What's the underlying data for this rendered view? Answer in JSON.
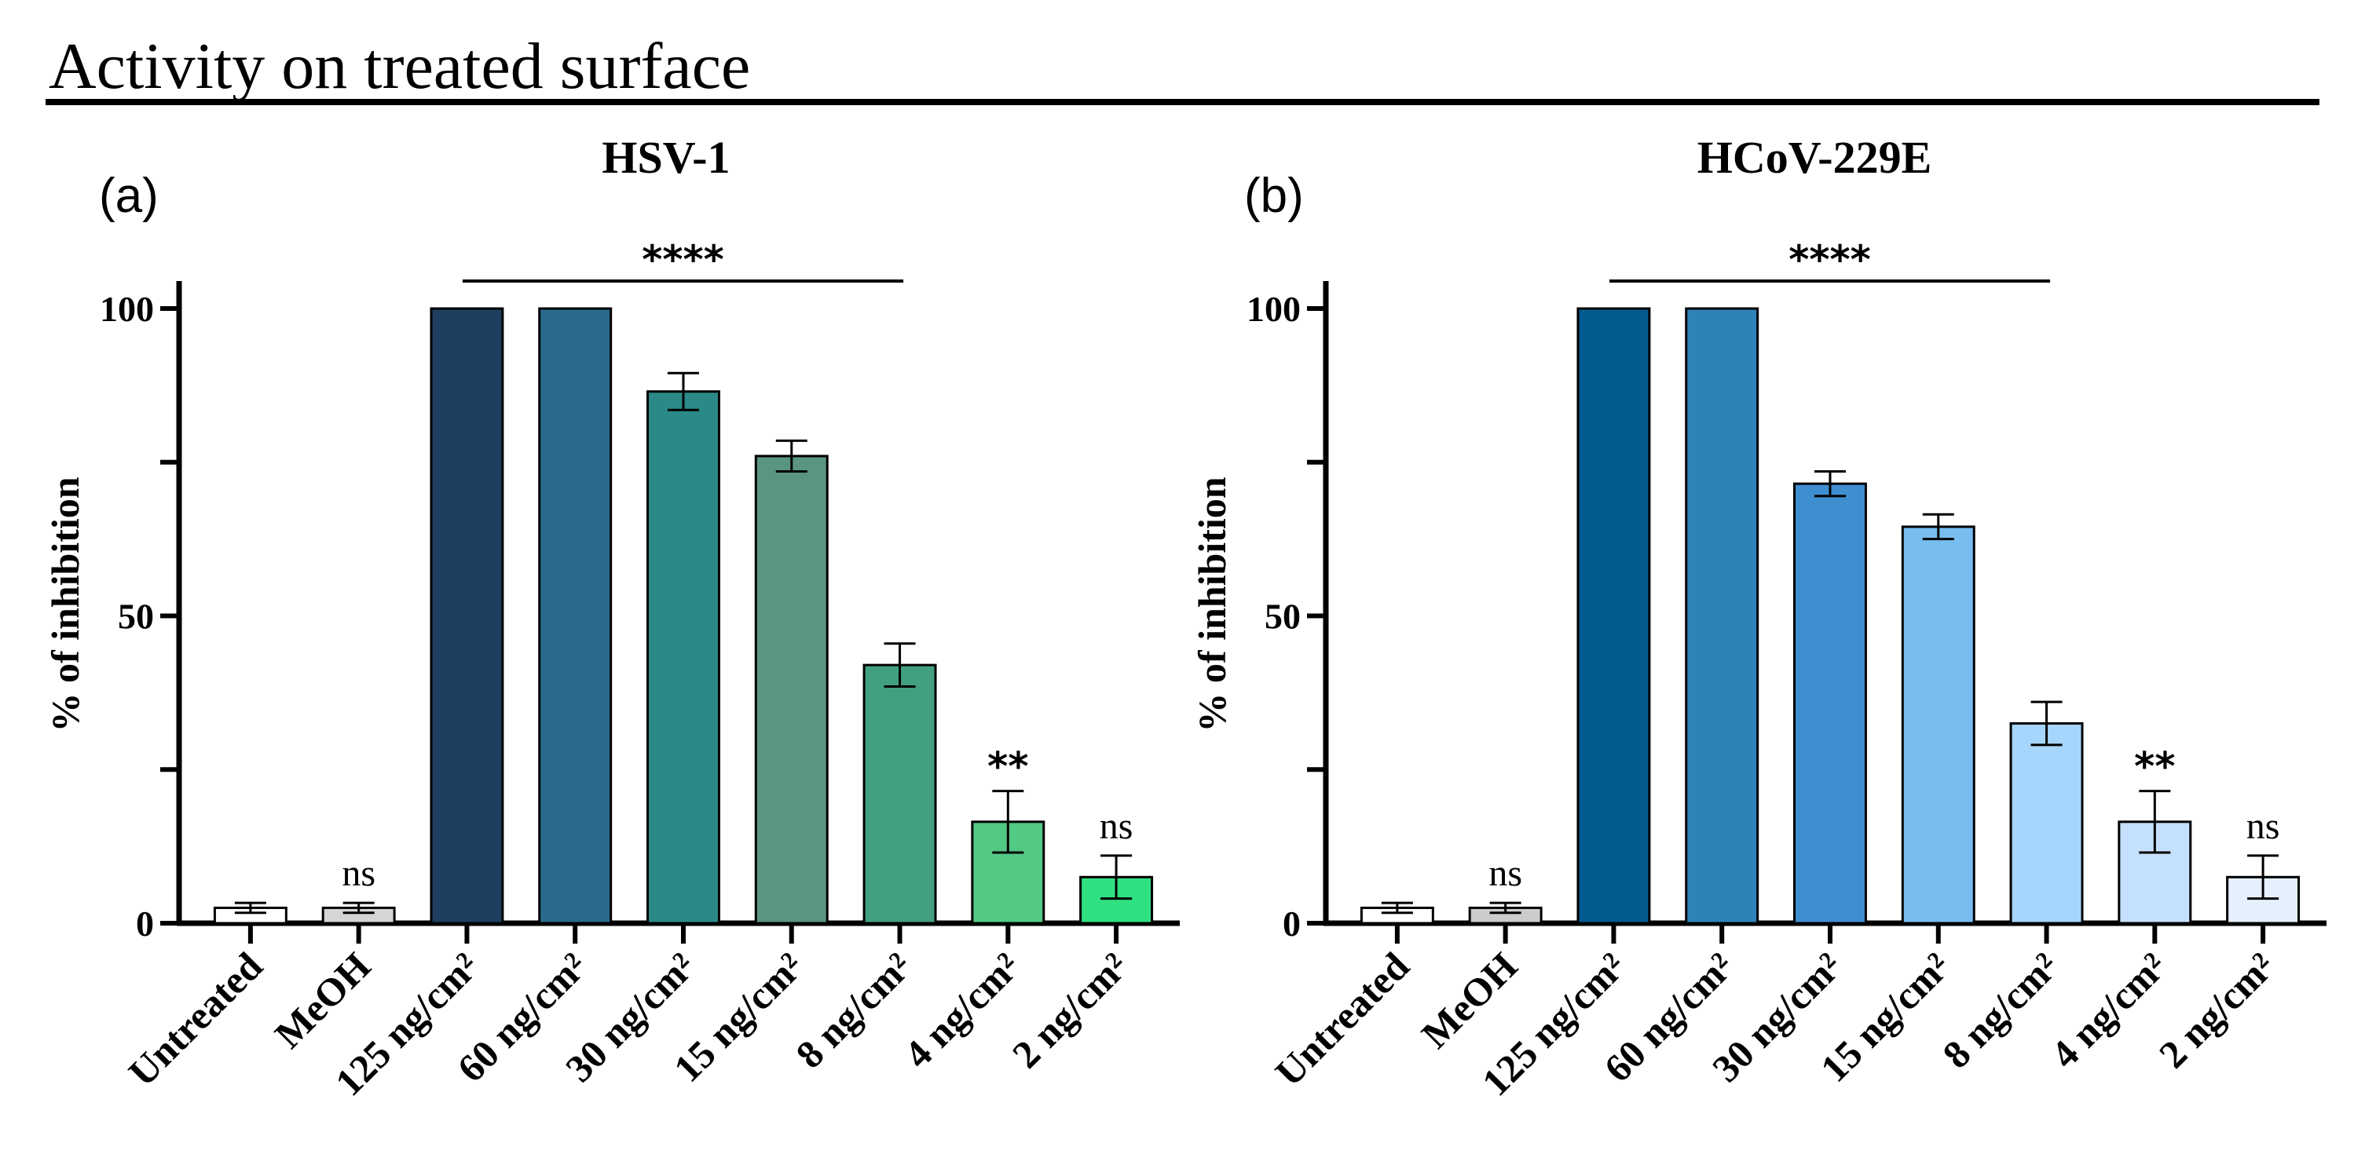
{
  "page_title": "Activity on treated surface",
  "chart_data": [
    {
      "type": "bar",
      "panel": "(a)",
      "title": "HSV-1",
      "ylabel": "% of inhibition",
      "xlabel": "",
      "ylim": [
        0,
        100
      ],
      "yticks": [
        0,
        50,
        100
      ],
      "ytick_labels": [
        "0",
        "50",
        "100"
      ],
      "categories": [
        "Untreated",
        "MeOH",
        "125 ng/cm²",
        "60 ng/cm²",
        "30 ng/cm²",
        "15 ng/cm²",
        "8 ng/cm²",
        "4 ng/cm²",
        "2 ng/cm²"
      ],
      "values": [
        2.5,
        2.5,
        100,
        100,
        86.5,
        76,
        42,
        16.5,
        7.5
      ],
      "errors": [
        0.8,
        0.8,
        0,
        0,
        3,
        2.5,
        3.5,
        5,
        3.5
      ],
      "colors": [
        "#ffffff",
        "#d5d5d5",
        "#1e3f5f",
        "#2a6b8c",
        "#2b8a88",
        "#5a9580",
        "#42a07e",
        "#52c985",
        "#2ee07f"
      ],
      "annotations": [
        {
          "bar": 1,
          "text": "ns"
        },
        {
          "bar": 7,
          "text": "**"
        },
        {
          "bar": 8,
          "text": "ns"
        }
      ],
      "bracket": {
        "from_bar": 2,
        "to_bar": 6,
        "text": "****"
      }
    },
    {
      "type": "bar",
      "panel": "(b)",
      "title": "HCoV-229E",
      "ylabel": "% of inhibition",
      "xlabel": "",
      "ylim": [
        0,
        100
      ],
      "yticks": [
        0,
        50,
        100
      ],
      "ytick_labels": [
        "0",
        "50",
        "100"
      ],
      "categories": [
        "Untreated",
        "MeOH",
        "125 ng/cm²",
        "60 ng/cm²",
        "30 ng/cm²",
        "15 ng/cm²",
        "8 ng/cm²",
        "4 ng/cm²",
        "2 ng/cm²"
      ],
      "values": [
        2.5,
        2.5,
        100,
        100,
        71.5,
        64.5,
        32.5,
        16.5,
        7.5
      ],
      "errors": [
        0.8,
        0.8,
        0,
        0,
        2,
        2,
        3.5,
        5,
        3.5
      ],
      "colors": [
        "#ffffff",
        "#cccccc",
        "#035a8e",
        "#2f82b7",
        "#3f8fd0",
        "#78bdf0",
        "#a6d6fb",
        "#c5e0fc",
        "#e4f0fb"
      ],
      "annotations": [
        {
          "bar": 1,
          "text": "ns"
        },
        {
          "bar": 7,
          "text": "**"
        },
        {
          "bar": 8,
          "text": "ns"
        }
      ],
      "bracket": {
        "from_bar": 2,
        "to_bar": 6,
        "text": "****"
      }
    }
  ]
}
